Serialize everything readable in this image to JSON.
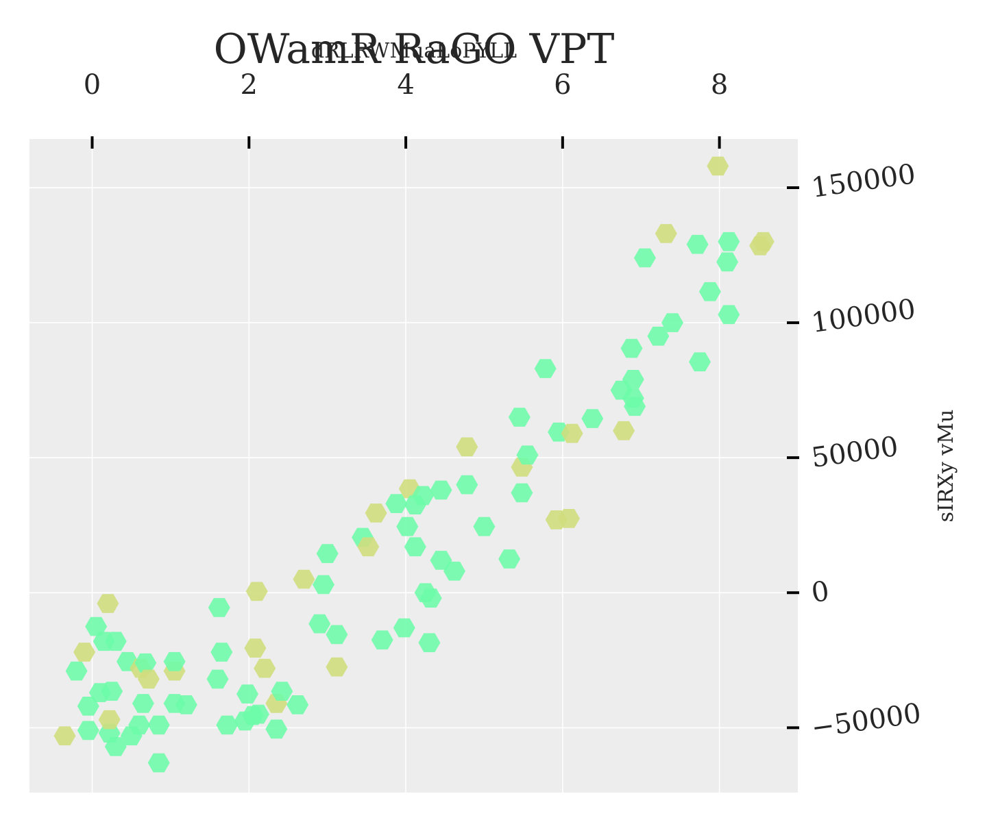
{
  "chart_data": {
    "type": "scatter",
    "title": "OWamR RaGO VPT",
    "xlabel": "dRLRWMuaLoPYLL",
    "ylabel": "sIRXy  vMu",
    "x_axis_position": "top",
    "y_axis_position": "right",
    "xlim": [
      -0.8,
      9.0
    ],
    "ylim": [
      -74000,
      168000
    ],
    "xticks": [
      0,
      2,
      4,
      6,
      8
    ],
    "yticks": [
      -50000,
      0,
      50000,
      100000,
      150000
    ],
    "xtick_labels": [
      "0",
      "2",
      "4",
      "6",
      "8"
    ],
    "ytick_labels": [
      "−50000",
      "0",
      "50000",
      "100000",
      "150000"
    ],
    "grid": true,
    "background": "#ededed",
    "marker": "hexagon",
    "colors": {
      "green": "#6dfca9",
      "olive": "#d0dd7c"
    },
    "points": [
      {
        "x": -0.35,
        "y": -53000,
        "c": "olive"
      },
      {
        "x": -0.2,
        "y": -29000,
        "c": "green"
      },
      {
        "x": -0.1,
        "y": -22000,
        "c": "olive"
      },
      {
        "x": -0.05,
        "y": -42000,
        "c": "green"
      },
      {
        "x": -0.05,
        "y": -51000,
        "c": "green"
      },
      {
        "x": 0.05,
        "y": -12500,
        "c": "green"
      },
      {
        "x": 0.1,
        "y": -37000,
        "c": "green"
      },
      {
        "x": 0.15,
        "y": -18000,
        "c": "green"
      },
      {
        "x": 0.2,
        "y": -4000,
        "c": "olive"
      },
      {
        "x": 0.22,
        "y": -52000,
        "c": "green"
      },
      {
        "x": 0.22,
        "y": -47000,
        "c": "olive"
      },
      {
        "x": 0.25,
        "y": -36500,
        "c": "green"
      },
      {
        "x": 0.3,
        "y": -18000,
        "c": "green"
      },
      {
        "x": 0.3,
        "y": -57000,
        "c": "green"
      },
      {
        "x": 0.45,
        "y": -25500,
        "c": "green"
      },
      {
        "x": 0.5,
        "y": -53000,
        "c": "green"
      },
      {
        "x": 0.6,
        "y": -49000,
        "c": "green"
      },
      {
        "x": 0.62,
        "y": -28000,
        "c": "olive"
      },
      {
        "x": 0.65,
        "y": -41000,
        "c": "green"
      },
      {
        "x": 0.68,
        "y": -26000,
        "c": "green"
      },
      {
        "x": 0.72,
        "y": -32000,
        "c": "olive"
      },
      {
        "x": 0.85,
        "y": -49000,
        "c": "green"
      },
      {
        "x": 0.85,
        "y": -63000,
        "c": "green"
      },
      {
        "x": 1.05,
        "y": -29000,
        "c": "olive"
      },
      {
        "x": 1.05,
        "y": -41000,
        "c": "green"
      },
      {
        "x": 1.05,
        "y": -25500,
        "c": "green"
      },
      {
        "x": 1.2,
        "y": -41500,
        "c": "green"
      },
      {
        "x": 1.6,
        "y": -32000,
        "c": "green"
      },
      {
        "x": 1.62,
        "y": -5500,
        "c": "green"
      },
      {
        "x": 1.65,
        "y": -22000,
        "c": "green"
      },
      {
        "x": 1.72,
        "y": -49000,
        "c": "green"
      },
      {
        "x": 1.95,
        "y": -47500,
        "c": "green"
      },
      {
        "x": 1.98,
        "y": -37500,
        "c": "green"
      },
      {
        "x": 2.05,
        "y": -45500,
        "c": "green"
      },
      {
        "x": 2.08,
        "y": -20500,
        "c": "olive"
      },
      {
        "x": 2.1,
        "y": 500,
        "c": "olive"
      },
      {
        "x": 2.12,
        "y": -45000,
        "c": "green"
      },
      {
        "x": 2.2,
        "y": -28000,
        "c": "olive"
      },
      {
        "x": 2.35,
        "y": -41000,
        "c": "olive"
      },
      {
        "x": 2.35,
        "y": -50500,
        "c": "green"
      },
      {
        "x": 2.42,
        "y": -36500,
        "c": "green"
      },
      {
        "x": 2.62,
        "y": -41500,
        "c": "green"
      },
      {
        "x": 2.7,
        "y": 5000,
        "c": "olive"
      },
      {
        "x": 2.9,
        "y": -11500,
        "c": "green"
      },
      {
        "x": 2.95,
        "y": 3000,
        "c": "green"
      },
      {
        "x": 3.0,
        "y": 14500,
        "c": "green"
      },
      {
        "x": 3.12,
        "y": -15500,
        "c": "green"
      },
      {
        "x": 3.12,
        "y": -27500,
        "c": "olive"
      },
      {
        "x": 3.45,
        "y": 20500,
        "c": "green"
      },
      {
        "x": 3.52,
        "y": 17000,
        "c": "olive"
      },
      {
        "x": 3.62,
        "y": 29500,
        "c": "olive"
      },
      {
        "x": 3.7,
        "y": -17500,
        "c": "green"
      },
      {
        "x": 3.88,
        "y": 33000,
        "c": "green"
      },
      {
        "x": 3.98,
        "y": -13000,
        "c": "green"
      },
      {
        "x": 4.02,
        "y": 24500,
        "c": "green"
      },
      {
        "x": 4.05,
        "y": 38500,
        "c": "olive"
      },
      {
        "x": 4.12,
        "y": 32500,
        "c": "green"
      },
      {
        "x": 4.12,
        "y": 17000,
        "c": "green"
      },
      {
        "x": 4.22,
        "y": 36000,
        "c": "green"
      },
      {
        "x": 4.25,
        "y": 0,
        "c": "green"
      },
      {
        "x": 4.32,
        "y": -2000,
        "c": "green"
      },
      {
        "x": 4.3,
        "y": -18500,
        "c": "green"
      },
      {
        "x": 4.45,
        "y": 38000,
        "c": "green"
      },
      {
        "x": 4.45,
        "y": 12000,
        "c": "green"
      },
      {
        "x": 4.62,
        "y": 8000,
        "c": "green"
      },
      {
        "x": 4.78,
        "y": 54000,
        "c": "olive"
      },
      {
        "x": 4.78,
        "y": 40000,
        "c": "green"
      },
      {
        "x": 5.0,
        "y": 24500,
        "c": "green"
      },
      {
        "x": 5.32,
        "y": 12500,
        "c": "green"
      },
      {
        "x": 5.45,
        "y": 65000,
        "c": "green"
      },
      {
        "x": 5.48,
        "y": 46500,
        "c": "olive"
      },
      {
        "x": 5.48,
        "y": 37000,
        "c": "green"
      },
      {
        "x": 5.55,
        "y": 51000,
        "c": "green"
      },
      {
        "x": 5.78,
        "y": 83000,
        "c": "green"
      },
      {
        "x": 5.92,
        "y": 27000,
        "c": "olive"
      },
      {
        "x": 5.95,
        "y": 59500,
        "c": "green"
      },
      {
        "x": 6.08,
        "y": 27500,
        "c": "olive"
      },
      {
        "x": 6.12,
        "y": 59000,
        "c": "olive"
      },
      {
        "x": 6.38,
        "y": 64500,
        "c": "green"
      },
      {
        "x": 6.75,
        "y": 75000,
        "c": "green"
      },
      {
        "x": 6.78,
        "y": 60000,
        "c": "olive"
      },
      {
        "x": 6.88,
        "y": 90500,
        "c": "green"
      },
      {
        "x": 6.9,
        "y": 79000,
        "c": "green"
      },
      {
        "x": 6.9,
        "y": 72000,
        "c": "green"
      },
      {
        "x": 6.92,
        "y": 69000,
        "c": "green"
      },
      {
        "x": 7.05,
        "y": 124000,
        "c": "green"
      },
      {
        "x": 7.22,
        "y": 95000,
        "c": "green"
      },
      {
        "x": 7.32,
        "y": 133000,
        "c": "olive"
      },
      {
        "x": 7.4,
        "y": 100000,
        "c": "green"
      },
      {
        "x": 7.72,
        "y": 129000,
        "c": "green"
      },
      {
        "x": 7.75,
        "y": 85500,
        "c": "green"
      },
      {
        "x": 7.88,
        "y": 111500,
        "c": "green"
      },
      {
        "x": 7.98,
        "y": 158000,
        "c": "olive"
      },
      {
        "x": 8.1,
        "y": 122500,
        "c": "green"
      },
      {
        "x": 8.12,
        "y": 130000,
        "c": "green"
      },
      {
        "x": 8.12,
        "y": 103000,
        "c": "green"
      },
      {
        "x": 8.52,
        "y": 128500,
        "c": "olive"
      },
      {
        "x": 8.56,
        "y": 130000,
        "c": "olive"
      }
    ]
  }
}
